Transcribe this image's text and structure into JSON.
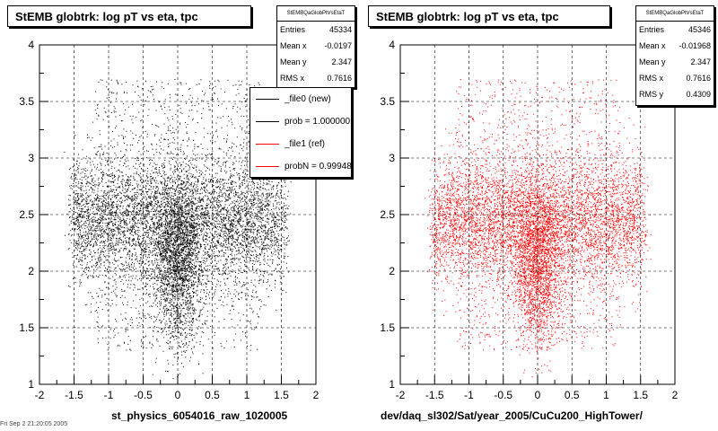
{
  "charts": [
    {
      "title": "StEMB globtrk: log pT vs eta, tpc",
      "stats": {
        "header": "StEMBQaGlobPtVsEtaT",
        "rows": [
          {
            "label": "Entries",
            "value": "45334"
          },
          {
            "label": "Mean x",
            "value": "-0.0197"
          },
          {
            "label": "Mean y",
            "value": "2.347"
          },
          {
            "label": "RMS x",
            "value": "0.7616"
          }
        ]
      },
      "legend": [
        {
          "label": "_file0 (new)",
          "color": "#000000"
        },
        {
          "label": "prob = 1.000000",
          "color": "#000000"
        },
        {
          "label": "_file1 (ref)",
          "color": "#ff0000"
        },
        {
          "label": "probN = 0.99948",
          "color": "#ff0000"
        }
      ],
      "xlabel": "st_physics_6054016_raw_1020005",
      "point_color": "#000000"
    },
    {
      "title": "StEMB globtrk: log pT vs eta, tpc",
      "stats": {
        "header": "StEMBQaGlobPtVsEtaT",
        "rows": [
          {
            "label": "Entries",
            "value": "45346"
          },
          {
            "label": "Mean x",
            "value": "-0.01968"
          },
          {
            "label": "Mean y",
            "value": "2.347"
          },
          {
            "label": "RMS x",
            "value": "0.7616"
          },
          {
            "label": "RMS y",
            "value": "0.4309"
          }
        ]
      },
      "xlabel": "dev/daq_sl302/Sat/year_2005/CuCu200_HighTower/",
      "point_color": "#ff0000"
    }
  ],
  "chart_data": [
    {
      "type": "scatter",
      "title": "StEMB globtrk: log pT vs eta, tpc",
      "xlim": [
        -2,
        2
      ],
      "ylim": [
        1,
        4
      ],
      "x_ticks": [
        "-2",
        "-1.5",
        "-1",
        "-0.5",
        "0",
        "0.5",
        "1",
        "1.5",
        "2"
      ],
      "y_ticks": [
        "1",
        "1.5",
        "2",
        "2.5",
        "3",
        "3.5",
        "4"
      ],
      "grid": true,
      "entries": 45334,
      "mean_x": -0.0197,
      "mean_y": 2.347,
      "rms_x": 0.7616,
      "series": [
        {
          "name": "_file0 (new)",
          "color": "#000000"
        }
      ]
    },
    {
      "type": "scatter",
      "title": "StEMB globtrk: log pT vs eta, tpc",
      "xlim": [
        -2,
        2
      ],
      "ylim": [
        1,
        4
      ],
      "x_ticks": [
        "-2",
        "-1.5",
        "-1",
        "-0.5",
        "0",
        "0.5",
        "1",
        "1.5",
        "2"
      ],
      "y_ticks": [
        "1",
        "1.5",
        "2",
        "2.5",
        "3",
        "3.5",
        "4"
      ],
      "grid": true,
      "entries": 45346,
      "mean_x": -0.01968,
      "mean_y": 2.347,
      "rms_x": 0.7616,
      "rms_y": 0.4309,
      "series": [
        {
          "name": "_file1 (ref)",
          "color": "#ff0000"
        }
      ]
    }
  ],
  "footer_text": "Fri Sep  2 21:20:05 2005"
}
